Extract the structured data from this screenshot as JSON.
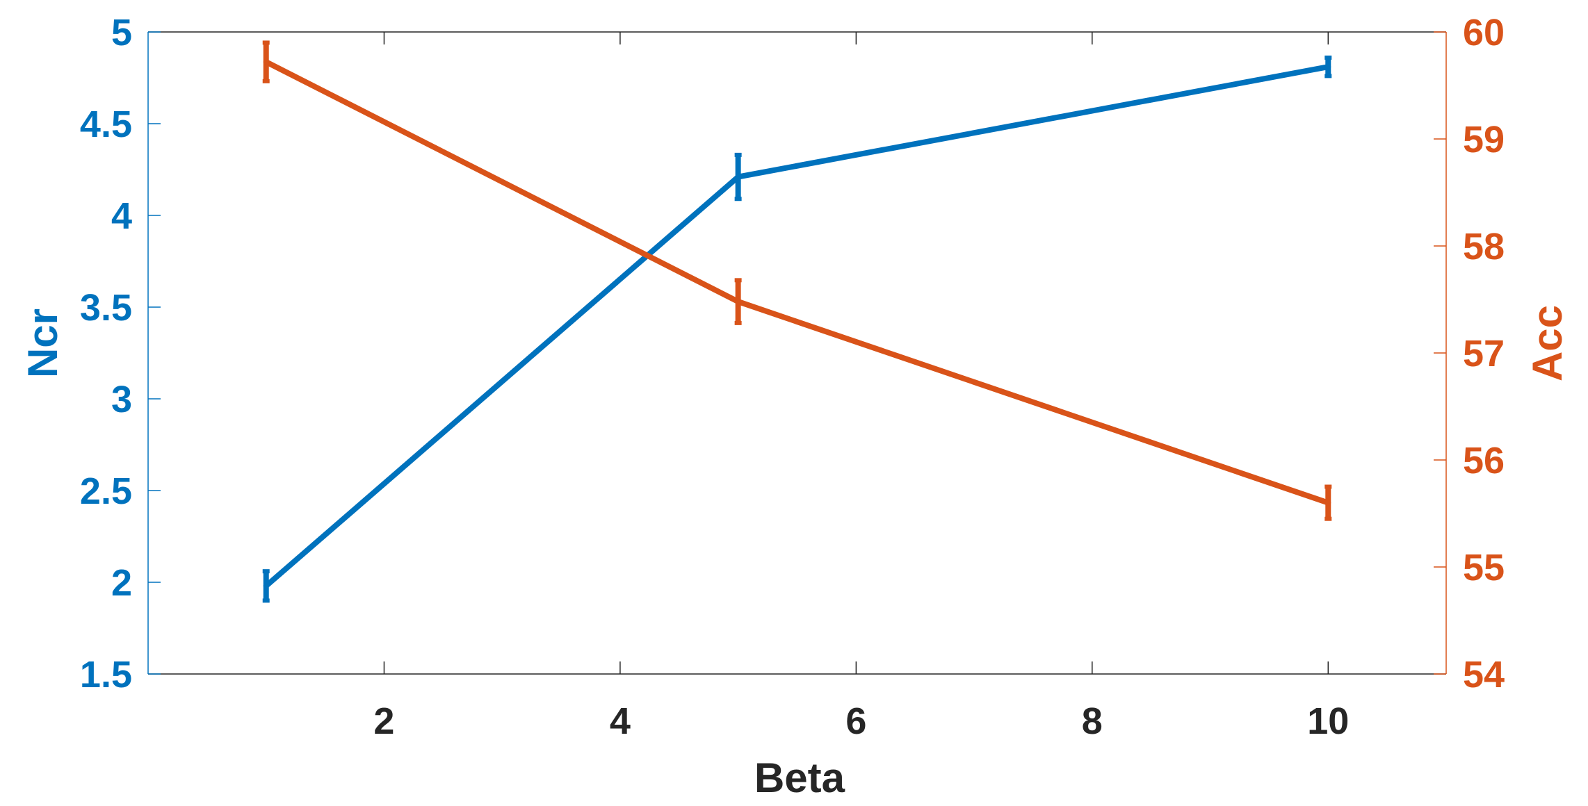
{
  "chart_data": {
    "type": "line",
    "xlabel": "Beta",
    "x_axis": {
      "range": [
        0,
        11
      ],
      "ticks": [
        2,
        4,
        6,
        8,
        10
      ],
      "tick_labels": [
        "2",
        "4",
        "6",
        "8",
        "10"
      ]
    },
    "y_left": {
      "label": "Ncr",
      "range": [
        1.5,
        5
      ],
      "ticks": [
        1.5,
        2,
        2.5,
        3,
        3.5,
        4,
        4.5,
        5
      ],
      "tick_labels": [
        "1.5",
        "2",
        "2.5",
        "3",
        "3.5",
        "4",
        "4.5",
        "5"
      ],
      "color": "#0072BD"
    },
    "y_right": {
      "label": "Acc",
      "range": [
        54,
        60
      ],
      "ticks": [
        54,
        55,
        56,
        57,
        58,
        59,
        60
      ],
      "tick_labels": [
        "54",
        "55",
        "56",
        "57",
        "58",
        "59",
        "60"
      ],
      "color": "#D95319"
    },
    "grid": false,
    "series": [
      {
        "axis": "left",
        "color": "#0072BD",
        "x": [
          1,
          5,
          10
        ],
        "y": [
          1.98,
          4.21,
          4.81
        ],
        "err": [
          0.08,
          0.12,
          0.05
        ]
      },
      {
        "axis": "right",
        "color": "#D95319",
        "x": [
          1,
          5,
          10
        ],
        "y": [
          59.72,
          57.48,
          55.6
        ],
        "err": [
          0.18,
          0.2,
          0.15
        ]
      }
    ]
  }
}
